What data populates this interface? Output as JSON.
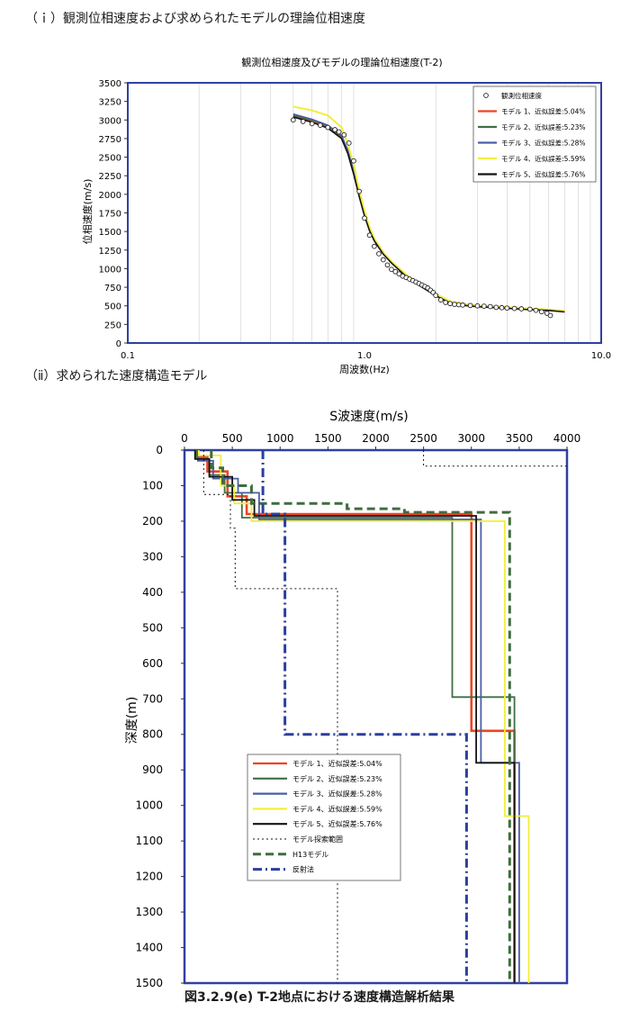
{
  "headings": {
    "section1": "（ｉ）観測位相速度および求められたモデルの理論位相速度",
    "section2": "（ⅱ）求められた速度構造モデル",
    "figure_caption": "図3.2.9(e)  T-2地点における速度構造解析結果"
  },
  "colors": {
    "model1": "#ee4422",
    "model2": "#3f6f44",
    "model3": "#4a5fa6",
    "model4": "#f2ee3c",
    "model5": "#141414",
    "h13": "#3e6e3e",
    "reflection": "#2b3f9e",
    "frame": "#3040a0"
  },
  "chart_data": [
    {
      "type": "line",
      "title": "観測位相速度及びモデルの理論位相速度(T-2)",
      "xlabel": "周波数(Hz)",
      "ylabel": "位相速度(m/s)",
      "xscale": "log",
      "xlim": [
        0.1,
        10.0
      ],
      "ylim": [
        0,
        3500
      ],
      "xticks": [
        "0.1",
        "1.0",
        "10.0"
      ],
      "yticks": [
        "0",
        "250",
        "500",
        "750",
        "1000",
        "1250",
        "1500",
        "1750",
        "2000",
        "2250",
        "2500",
        "2750",
        "3000",
        "3250",
        "3500"
      ],
      "legend_position": "top-right",
      "observed": {
        "name": "観測位相速度",
        "x": [
          0.5,
          0.55,
          0.6,
          0.65,
          0.7,
          0.75,
          0.78,
          0.82,
          0.86,
          0.9,
          0.95,
          1.0,
          1.05,
          1.1,
          1.15,
          1.2,
          1.25,
          1.3,
          1.35,
          1.4,
          1.45,
          1.5,
          1.55,
          1.6,
          1.65,
          1.7,
          1.75,
          1.8,
          1.85,
          1.9,
          1.95,
          2.0,
          2.1,
          2.2,
          2.3,
          2.4,
          2.5,
          2.6,
          2.8,
          3.0,
          3.2,
          3.4,
          3.6,
          3.8,
          4.0,
          4.3,
          4.6,
          5.0,
          5.3,
          5.6,
          5.9,
          6.1
        ],
        "y": [
          3000,
          2980,
          2950,
          2930,
          2900,
          2870,
          2840,
          2800,
          2690,
          2450,
          2040,
          1680,
          1450,
          1300,
          1200,
          1120,
          1050,
          990,
          960,
          930,
          900,
          880,
          860,
          840,
          820,
          800,
          780,
          760,
          740,
          710,
          680,
          640,
          580,
          545,
          530,
          520,
          515,
          510,
          505,
          500,
          495,
          490,
          480,
          475,
          470,
          465,
          460,
          455,
          440,
          420,
          400,
          370
        ]
      },
      "x": [
        0.5,
        0.6,
        0.7,
        0.8,
        0.85,
        0.9,
        0.95,
        1.0,
        1.05,
        1.1,
        1.2,
        1.3,
        1.5,
        1.7,
        2.0,
        2.3,
        2.6,
        3.0,
        4.0,
        5.0,
        6.0,
        7.0
      ],
      "series": [
        {
          "name": "モデル 1、近似誤差:5.04%",
          "values": [
            3050,
            2980,
            2900,
            2760,
            2560,
            2280,
            1980,
            1720,
            1520,
            1380,
            1200,
            1080,
            900,
            780,
            640,
            540,
            510,
            490,
            470,
            450,
            440,
            420
          ]
        },
        {
          "name": "モデル 2、近似誤差:5.23%",
          "values": [
            3060,
            3000,
            2920,
            2780,
            2580,
            2300,
            2000,
            1740,
            1530,
            1390,
            1210,
            1090,
            910,
            790,
            650,
            550,
            520,
            495,
            475,
            455,
            445,
            425
          ]
        },
        {
          "name": "モデル 3、近似誤差:5.28%",
          "values": [
            3080,
            3010,
            2930,
            2790,
            2600,
            2320,
            2010,
            1750,
            1540,
            1395,
            1215,
            1095,
            915,
            795,
            655,
            555,
            522,
            497,
            477,
            457,
            447,
            428
          ]
        },
        {
          "name": "モデル 4、近似誤差:5.59%",
          "values": [
            3180,
            3130,
            3060,
            2900,
            2680,
            2400,
            2060,
            1780,
            1560,
            1410,
            1220,
            1100,
            920,
            800,
            660,
            560,
            530,
            505,
            485,
            462,
            452,
            432
          ]
        },
        {
          "name": "モデル 5、近似誤差:5.76%",
          "values": [
            3040,
            2970,
            2890,
            2750,
            2550,
            2270,
            1970,
            1710,
            1510,
            1375,
            1195,
            1075,
            895,
            775,
            635,
            538,
            508,
            488,
            468,
            448,
            438,
            418
          ]
        }
      ]
    },
    {
      "type": "line",
      "title": "",
      "xlabel": "S波速度(m/s)",
      "ylabel": "深度(m)",
      "xlim": [
        0,
        4000
      ],
      "ylim": [
        0,
        1500
      ],
      "y_inverted": true,
      "x_axis_position": "top",
      "xticks": [
        "0",
        "500",
        "1000",
        "1500",
        "2000",
        "2500",
        "3000",
        "3500",
        "4000"
      ],
      "yticks": [
        "0",
        "100",
        "200",
        "300",
        "400",
        "500",
        "600",
        "700",
        "800",
        "900",
        "1000",
        "1100",
        "1200",
        "1300",
        "1400",
        "1500"
      ],
      "legend_position": "bottom-left",
      "series": [
        {
          "name": "モデル 1、近似誤差:5.04%",
          "color_key": "model1",
          "points": [
            [
              120,
              0
            ],
            [
              120,
              20
            ],
            [
              240,
              20
            ],
            [
              240,
              60
            ],
            [
              450,
              60
            ],
            [
              450,
              130
            ],
            [
              650,
              130
            ],
            [
              650,
              180
            ],
            [
              3000,
              180
            ],
            [
              3000,
              790
            ],
            [
              3450,
              790
            ],
            [
              3450,
              1500
            ]
          ]
        },
        {
          "name": "モデル 2、近似誤差:5.23%",
          "color_key": "model2",
          "points": [
            [
              130,
              0
            ],
            [
              130,
              25
            ],
            [
              260,
              25
            ],
            [
              260,
              70
            ],
            [
              420,
              70
            ],
            [
              420,
              120
            ],
            [
              600,
              120
            ],
            [
              600,
              190
            ],
            [
              2800,
              190
            ],
            [
              2800,
              695
            ],
            [
              3450,
              695
            ],
            [
              3450,
              1500
            ]
          ]
        },
        {
          "name": "モデル 3、近似誤差:5.28%",
          "color_key": "model3",
          "points": [
            [
              140,
              0
            ],
            [
              140,
              30
            ],
            [
              300,
              30
            ],
            [
              300,
              80
            ],
            [
              560,
              80
            ],
            [
              560,
              120
            ],
            [
              780,
              120
            ],
            [
              780,
              195
            ],
            [
              3100,
              195
            ],
            [
              3100,
              880
            ],
            [
              3500,
              880
            ],
            [
              3500,
              1500
            ]
          ]
        },
        {
          "name": "モデル 4、近似誤差:5.59%",
          "color_key": "model4",
          "points": [
            [
              150,
              0
            ],
            [
              150,
              15
            ],
            [
              380,
              15
            ],
            [
              380,
              100
            ],
            [
              520,
              100
            ],
            [
              520,
              150
            ],
            [
              700,
              150
            ],
            [
              700,
              200
            ],
            [
              3350,
              200
            ],
            [
              3350,
              1030
            ],
            [
              3600,
              1030
            ],
            [
              3600,
              1500
            ]
          ]
        },
        {
          "name": "モデル 5、近似誤差:5.76%",
          "color_key": "model5",
          "points": [
            [
              110,
              0
            ],
            [
              110,
              25
            ],
            [
              260,
              25
            ],
            [
              260,
              75
            ],
            [
              500,
              75
            ],
            [
              500,
              140
            ],
            [
              730,
              140
            ],
            [
              730,
              185
            ],
            [
              3050,
              185
            ],
            [
              3050,
              880
            ],
            [
              3450,
              880
            ],
            [
              3450,
              1500
            ]
          ]
        },
        {
          "name": "モデル探索範囲",
          "color_key": "model5",
          "dash": "dot",
          "points": [
            [
              200,
              0
            ],
            [
              200,
              125
            ],
            [
              480,
              125
            ],
            [
              480,
              220
            ],
            [
              530,
              220
            ],
            [
              530,
              390
            ],
            [
              1600,
              390
            ],
            [
              1600,
              1500
            ]
          ]
        },
        {
          "name": "モデル探索範囲",
          "color_key": "model5",
          "dash": "dot",
          "points": [
            [
              2500,
              0
            ],
            [
              2500,
              45
            ],
            [
              4000,
              45
            ]
          ]
        },
        {
          "name": "H13モデル",
          "color_key": "h13",
          "dash": "dash",
          "points": [
            [
              280,
              0
            ],
            [
              280,
              50
            ],
            [
              400,
              50
            ],
            [
              400,
              100
            ],
            [
              700,
              100
            ],
            [
              700,
              150
            ],
            [
              1700,
              150
            ],
            [
              1700,
              165
            ],
            [
              2300,
              165
            ],
            [
              2300,
              175
            ],
            [
              3400,
              175
            ],
            [
              3400,
              1500
            ]
          ]
        },
        {
          "name": "反射法",
          "color_key": "reflection",
          "dash": "dashdot",
          "points": [
            [
              820,
              0
            ],
            [
              820,
              180
            ],
            [
              1050,
              180
            ],
            [
              1050,
              800
            ],
            [
              2950,
              800
            ],
            [
              2950,
              1500
            ]
          ]
        }
      ]
    }
  ],
  "legend1": [
    {
      "label": "観測位相速度",
      "kind": "marker"
    },
    {
      "label": "モデル 1、近似誤差:5.04%",
      "color_key": "model1"
    },
    {
      "label": "モデル 2、近似誤差:5.23%",
      "color_key": "model2"
    },
    {
      "label": "モデル 3、近似誤差:5.28%",
      "color_key": "model3"
    },
    {
      "label": "モデル 4、近似誤差:5.59%",
      "color_key": "model4"
    },
    {
      "label": "モデル 5、近似誤差:5.76%",
      "color_key": "model5"
    }
  ],
  "legend2": [
    {
      "label": "モデル 1、近似誤差:5.04%",
      "color_key": "model1",
      "dash": "solid"
    },
    {
      "label": "モデル 2、近似誤差:5.23%",
      "color_key": "model2",
      "dash": "solid"
    },
    {
      "label": "モデル 3、近似誤差:5.28%",
      "color_key": "model3",
      "dash": "solid"
    },
    {
      "label": "モデル 4、近似誤差:5.59%",
      "color_key": "model4",
      "dash": "solid"
    },
    {
      "label": "モデル 5、近似誤差:5.76%",
      "color_key": "model5",
      "dash": "solid"
    },
    {
      "label": "モデル探索範囲",
      "color_key": "model5",
      "dash": "dot"
    },
    {
      "label": "H13モデル",
      "color_key": "h13",
      "dash": "dash"
    },
    {
      "label": "反射法",
      "color_key": "reflection",
      "dash": "dashdot"
    }
  ]
}
